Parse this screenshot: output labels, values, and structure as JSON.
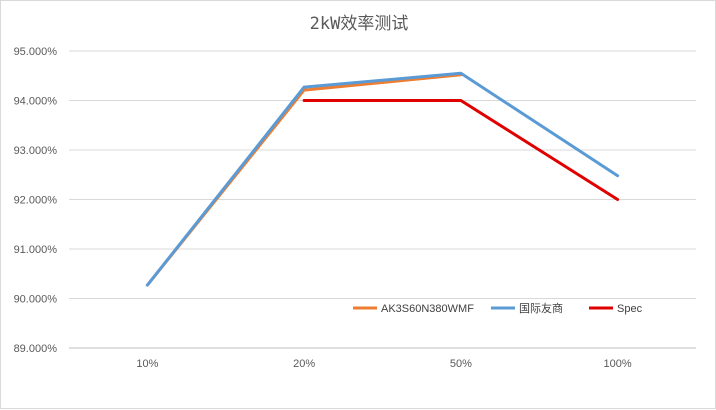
{
  "chart_data": {
    "type": "line",
    "title": "2kW效率测试",
    "categories": [
      "10%",
      "20%",
      "50%",
      "100%"
    ],
    "y_tick_labels": [
      "89.000%",
      "90.000%",
      "91.000%",
      "92.000%",
      "93.000%",
      "94.000%",
      "95.000%"
    ],
    "ylim": [
      0.89,
      0.95
    ],
    "grid": true,
    "legend_position": "bottom-right",
    "series": [
      {
        "name": "AK3S60N380WMF",
        "color": "#ED7D31",
        "values": [
          0.9027,
          0.9421,
          0.9452,
          null
        ]
      },
      {
        "name": "国际友商",
        "color": "#5B9BD5",
        "values": [
          0.9027,
          0.9427,
          0.9455,
          0.9248
        ]
      },
      {
        "name": "Spec",
        "color": "#E00000",
        "values": [
          null,
          0.94,
          0.94,
          0.92
        ]
      }
    ]
  }
}
